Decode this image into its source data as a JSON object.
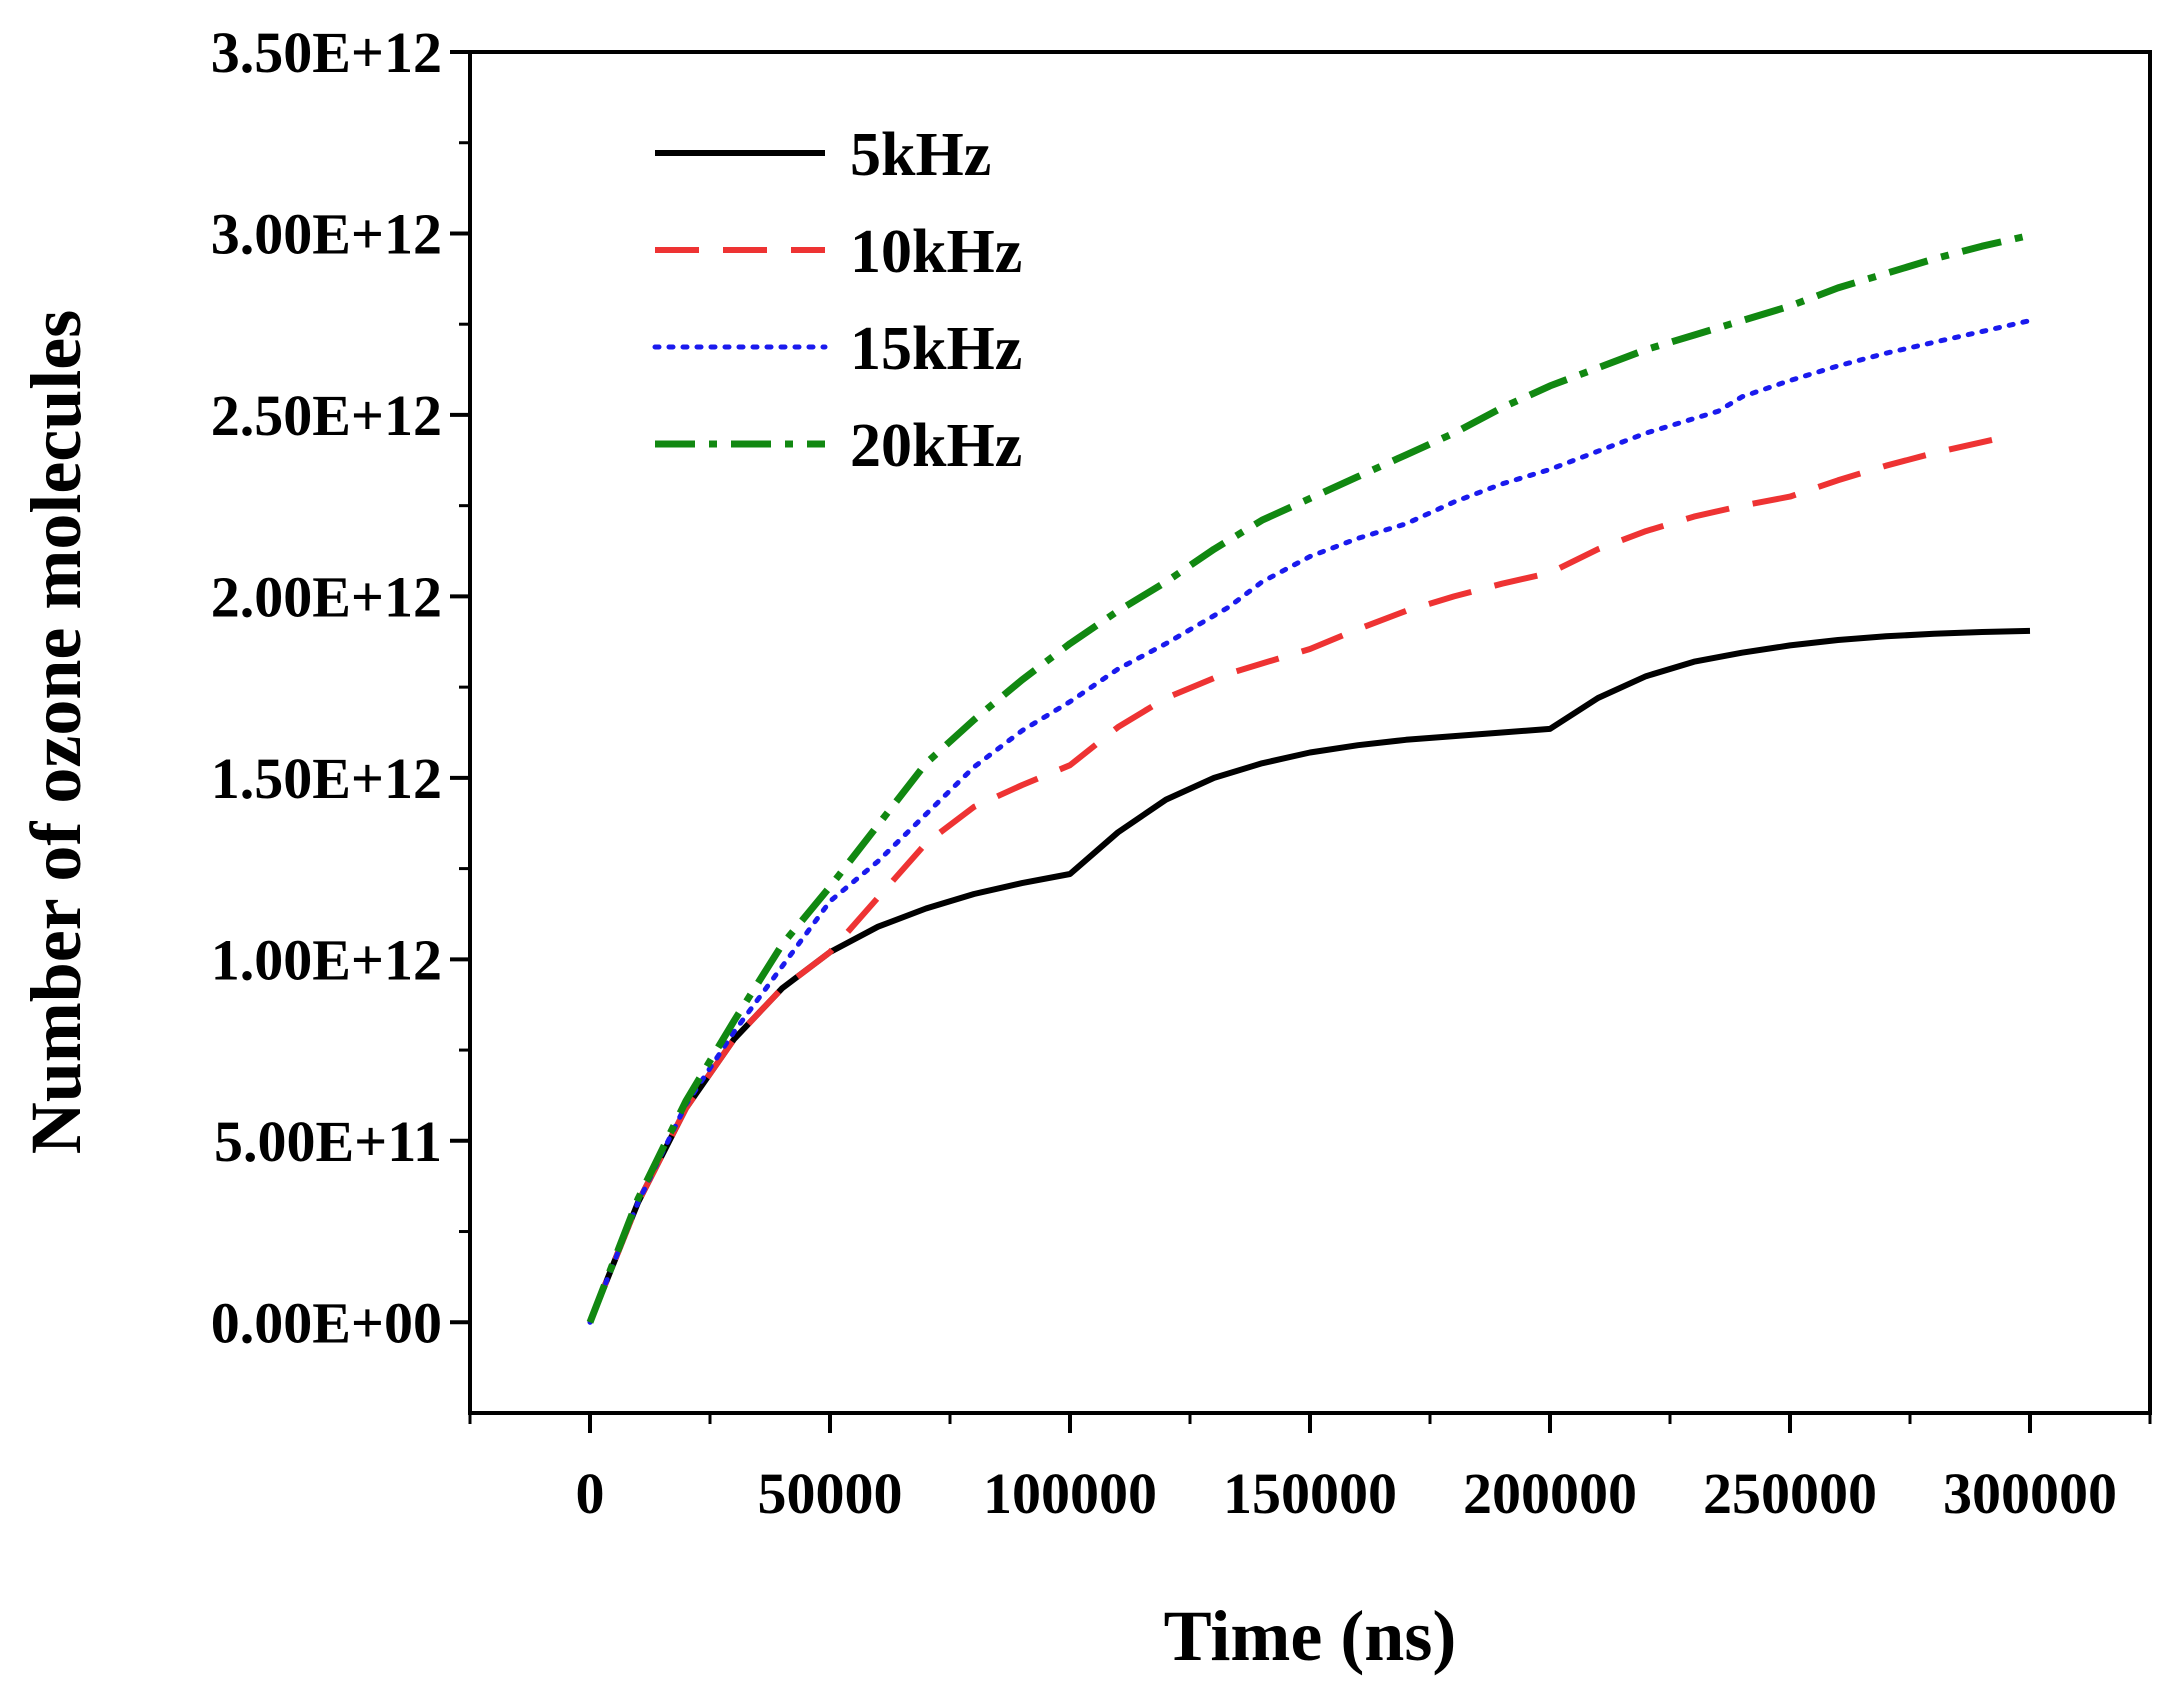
{
  "chart_data": {
    "type": "line",
    "title": "",
    "xlabel": "Time (ns)",
    "ylabel": "Number of ozone molecules",
    "xlim": [
      -25000,
      325000
    ],
    "ylim": [
      -250000000000.0,
      3500000000000.0
    ],
    "x_ticks": [
      0,
      50000,
      100000,
      150000,
      200000,
      250000,
      300000
    ],
    "x_tick_labels": [
      "0",
      "50000",
      "100000",
      "150000",
      "200000",
      "250000",
      "300000"
    ],
    "y_ticks": [
      0,
      500000000000.0,
      1000000000000.0,
      1500000000000.0,
      2000000000000.0,
      2500000000000.0,
      3000000000000.0,
      3500000000000.0
    ],
    "y_tick_labels": [
      "0.00E+00",
      "5.00E+11",
      "1.00E+12",
      "1.50E+12",
      "2.00E+12",
      "2.50E+12",
      "3.00E+12",
      "3.50E+12"
    ],
    "grid": false,
    "legend_position": "top-left",
    "series": [
      {
        "name": "5kHz",
        "color": "#000000",
        "dash": "solid",
        "x": [
          0,
          10000,
          20000,
          30000,
          40000,
          50000,
          60000,
          70000,
          80000,
          90000,
          100000,
          110000,
          120000,
          130000,
          140000,
          150000,
          160000,
          170000,
          180000,
          190000,
          200000,
          210000,
          220000,
          230000,
          240000,
          250000,
          260000,
          270000,
          280000,
          290000,
          300000
        ],
        "y": [
          0,
          330000000000.0,
          590000000000.0,
          780000000000.0,
          920000000000.0,
          1020000000000.0,
          1090000000000.0,
          1140000000000.0,
          1180000000000.0,
          1210000000000.0,
          1235000000000.0,
          1350000000000.0,
          1440000000000.0,
          1500000000000.0,
          1540000000000.0,
          1570000000000.0,
          1590000000000.0,
          1605000000000.0,
          1615000000000.0,
          1625000000000.0,
          1635000000000.0,
          1720000000000.0,
          1780000000000.0,
          1820000000000.0,
          1845000000000.0,
          1865000000000.0,
          1880000000000.0,
          1890000000000.0,
          1897000000000.0,
          1902000000000.0,
          1905000000000.0
        ]
      },
      {
        "name": "10kHz",
        "color": "#ee3333",
        "dash": "long-dash",
        "x": [
          0,
          10000,
          20000,
          30000,
          40000,
          50000,
          60000,
          70000,
          80000,
          90000,
          100000,
          110000,
          120000,
          130000,
          140000,
          150000,
          160000,
          170000,
          180000,
          190000,
          200000,
          210000,
          220000,
          230000,
          240000,
          250000,
          260000,
          270000,
          280000,
          290000,
          295000
        ],
        "y": [
          0,
          330000000000.0,
          590000000000.0,
          780000000000.0,
          920000000000.0,
          1020000000000.0,
          1170000000000.0,
          1320000000000.0,
          1420000000000.0,
          1480000000000.0,
          1535000000000.0,
          1640000000000.0,
          1720000000000.0,
          1775000000000.0,
          1815000000000.0,
          1855000000000.0,
          1910000000000.0,
          1960000000000.0,
          2000000000000.0,
          2035000000000.0,
          2065000000000.0,
          2130000000000.0,
          2180000000000.0,
          2220000000000.0,
          2250000000000.0,
          2275000000000.0,
          2320000000000.0,
          2360000000000.0,
          2395000000000.0,
          2425000000000.0,
          2440000000000.0
        ]
      },
      {
        "name": "15kHz",
        "color": "#1a1aee",
        "dash": "dotted",
        "x": [
          0,
          10000,
          20000,
          30000,
          40000,
          50000,
          60000,
          70000,
          80000,
          90000,
          100000,
          110000,
          120000,
          133000,
          140000,
          150000,
          160000,
          170000,
          180000,
          190000,
          200000,
          210000,
          220000,
          235000,
          240000,
          250000,
          260000,
          270000,
          280000,
          290000,
          300000
        ],
        "y": [
          0,
          330000000000.0,
          600000000000.0,
          800000000000.0,
          980000000000.0,
          1160000000000.0,
          1270000000000.0,
          1400000000000.0,
          1530000000000.0,
          1630000000000.0,
          1710000000000.0,
          1800000000000.0,
          1870000000000.0,
          1970000000000.0,
          2040000000000.0,
          2110000000000.0,
          2160000000000.0,
          2200000000000.0,
          2260000000000.0,
          2310000000000.0,
          2350000000000.0,
          2400000000000.0,
          2450000000000.0,
          2510000000000.0,
          2550000000000.0,
          2595000000000.0,
          2635000000000.0,
          2670000000000.0,
          2700000000000.0,
          2730000000000.0,
          2760000000000.0
        ]
      },
      {
        "name": "20kHz",
        "color": "#118811",
        "dash": "dash-dot",
        "x": [
          0,
          10000,
          20000,
          30000,
          40000,
          50000,
          60000,
          70000,
          80000,
          90000,
          100000,
          110000,
          120000,
          130000,
          140000,
          150000,
          160000,
          170000,
          180000,
          190000,
          200000,
          210000,
          220000,
          230000,
          240000,
          250000,
          260000,
          270000,
          280000,
          290000,
          300000
        ],
        "y": [
          0,
          340000000000.0,
          610000000000.0,
          830000000000.0,
          1040000000000.0,
          1200000000000.0,
          1370000000000.0,
          1540000000000.0,
          1660000000000.0,
          1770000000000.0,
          1870000000000.0,
          1960000000000.0,
          2040000000000.0,
          2130000000000.0,
          2210000000000.0,
          2270000000000.0,
          2330000000000.0,
          2390000000000.0,
          2450000000000.0,
          2520000000000.0,
          2580000000000.0,
          2630000000000.0,
          2680000000000.0,
          2720000000000.0,
          2760000000000.0,
          2800000000000.0,
          2850000000000.0,
          2890000000000.0,
          2930000000000.0,
          2965000000000.0,
          2995000000000.0
        ]
      }
    ]
  }
}
